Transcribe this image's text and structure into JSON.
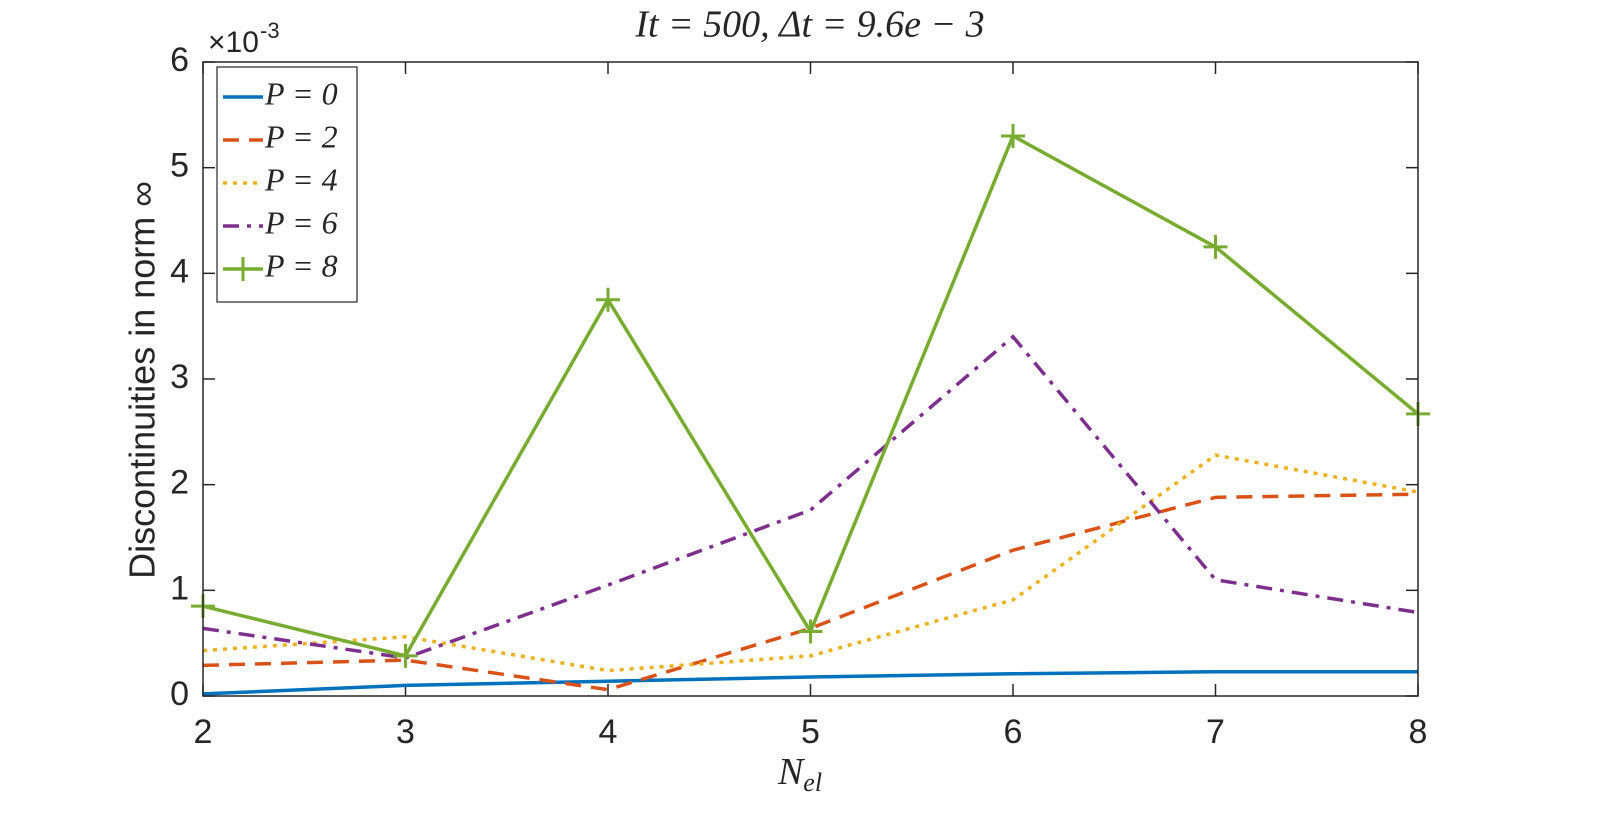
{
  "chart_data": {
    "type": "line",
    "title": "It = 500, Δt = 9.6e − 3",
    "xlabel": "N",
    "xlabel_subscript": "el",
    "ylabel": "Discontinuities in norm ∞",
    "y_multiplier": {
      "base": "×10",
      "exponent": "-3"
    },
    "x": [
      2,
      3,
      4,
      5,
      6,
      7,
      8
    ],
    "xlim": [
      2,
      8
    ],
    "xticks": [
      2,
      3,
      4,
      5,
      6,
      7,
      8
    ],
    "ylim": [
      0,
      6
    ],
    "yticks": [
      0,
      1,
      2,
      3,
      4,
      5,
      6
    ],
    "legend": "top-left",
    "series": [
      {
        "name": "P = 0",
        "color": "#0072BD",
        "line_style": "solid",
        "values": [
          0.02,
          0.1,
          0.14,
          0.18,
          0.21,
          0.23,
          0.23
        ]
      },
      {
        "name": "P = 2",
        "color": "#D95319",
        "line_style": "dashed",
        "values": [
          0.29,
          0.34,
          0.06,
          0.64,
          1.38,
          1.88,
          1.91
        ]
      },
      {
        "name": "P = 4",
        "color": "#EDB120",
        "line_style": "dotted",
        "values": [
          0.43,
          0.56,
          0.24,
          0.38,
          0.91,
          2.28,
          1.93
        ]
      },
      {
        "name": "P = 6",
        "color": "#7E2F8E",
        "line_style": "dashdot",
        "values": [
          0.64,
          0.36,
          1.05,
          1.76,
          3.4,
          1.1,
          0.79
        ]
      },
      {
        "name": "P = 8",
        "color": "#77AC30",
        "line_style": "solid",
        "marker": "plus",
        "values": [
          0.85,
          0.38,
          3.75,
          0.61,
          5.3,
          4.25,
          2.67
        ]
      }
    ]
  }
}
